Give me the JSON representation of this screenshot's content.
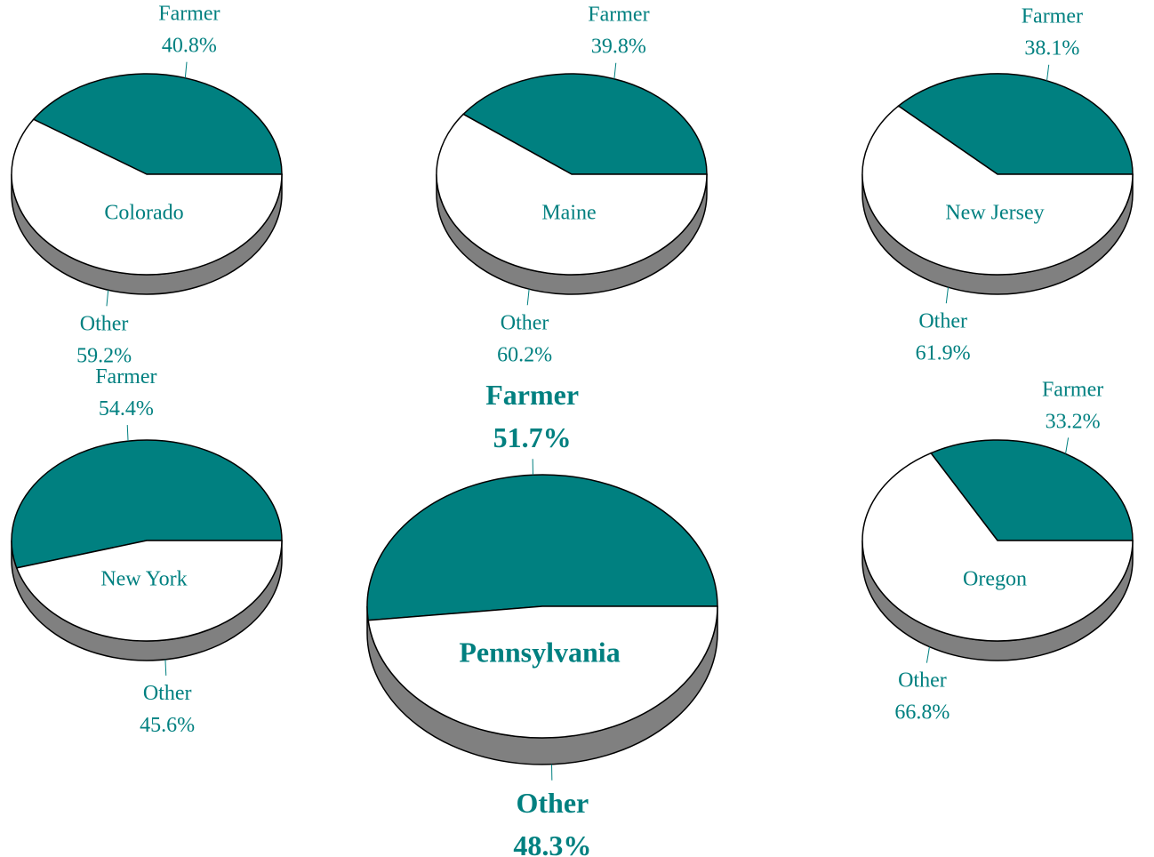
{
  "chart_data": [
    {
      "type": "pie",
      "title": "Colorado",
      "categories": [
        "Farmer",
        "Other"
      ],
      "values": [
        40.8,
        59.2
      ],
      "value_labels": [
        "40.8%",
        "59.2%"
      ],
      "colors": [
        "#008080",
        "#ffffff"
      ]
    },
    {
      "type": "pie",
      "title": "Maine",
      "categories": [
        "Farmer",
        "Other"
      ],
      "values": [
        39.8,
        60.2
      ],
      "value_labels": [
        "39.8%",
        "60.2%"
      ],
      "colors": [
        "#008080",
        "#ffffff"
      ]
    },
    {
      "type": "pie",
      "title": "New Jersey",
      "categories": [
        "Farmer",
        "Other"
      ],
      "values": [
        38.1,
        61.9
      ],
      "value_labels": [
        "38.1%",
        "61.9%"
      ],
      "colors": [
        "#008080",
        "#ffffff"
      ]
    },
    {
      "type": "pie",
      "title": "New York",
      "categories": [
        "Farmer",
        "Other"
      ],
      "values": [
        54.4,
        45.6
      ],
      "value_labels": [
        "54.4%",
        "45.6%"
      ],
      "colors": [
        "#008080",
        "#ffffff"
      ]
    },
    {
      "type": "pie",
      "title": "Pennsylvania",
      "categories": [
        "Farmer",
        "Other"
      ],
      "values": [
        51.7,
        48.3
      ],
      "value_labels": [
        "51.7%",
        "48.3%"
      ],
      "colors": [
        "#008080",
        "#ffffff"
      ]
    },
    {
      "type": "pie",
      "title": "Oregon",
      "categories": [
        "Farmer",
        "Other"
      ],
      "values": [
        33.2,
        66.8
      ],
      "value_labels": [
        "33.2%",
        "66.8%"
      ],
      "colors": [
        "#008080",
        "#ffffff"
      ]
    }
  ]
}
